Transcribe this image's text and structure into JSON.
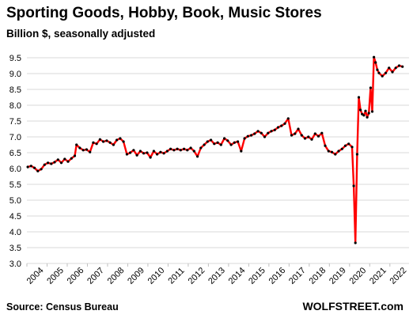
{
  "chart_data": {
    "type": "line",
    "title": "Sporting Goods, Hobby, Book, Music Stores",
    "subtitle": "Billion $, seasonally adjusted",
    "xlabel": "",
    "ylabel": "",
    "ylim": [
      3.0,
      9.5
    ],
    "y_ticks": [
      "3.0",
      "3.5",
      "4.0",
      "4.5",
      "5.0",
      "5.5",
      "6.0",
      "6.5",
      "7.0",
      "7.5",
      "8.0",
      "8.5",
      "9.0",
      "9.5"
    ],
    "x_ticks": [
      "2004",
      "2005",
      "2006",
      "2007",
      "2008",
      "2009",
      "2010",
      "2011",
      "2012",
      "2013",
      "2014",
      "2015",
      "2016",
      "2017",
      "2018",
      "2019",
      "2020",
      "2021",
      "2022"
    ],
    "grid": "horizontal",
    "line_color": "#ff0000",
    "marker_color": "#000000",
    "series": [
      {
        "points": [
          [
            "2004-01",
            6.05
          ],
          [
            "2004-03",
            6.08
          ],
          [
            "2004-05",
            6.02
          ],
          [
            "2004-07",
            5.92
          ],
          [
            "2004-09",
            5.98
          ],
          [
            "2004-11",
            6.12
          ],
          [
            "2005-01",
            6.18
          ],
          [
            "2005-03",
            6.15
          ],
          [
            "2005-05",
            6.2
          ],
          [
            "2005-07",
            6.28
          ],
          [
            "2005-09",
            6.18
          ],
          [
            "2005-11",
            6.3
          ],
          [
            "2006-01",
            6.22
          ],
          [
            "2006-03",
            6.32
          ],
          [
            "2006-05",
            6.4
          ],
          [
            "2006-06",
            6.75
          ],
          [
            "2006-08",
            6.65
          ],
          [
            "2006-10",
            6.58
          ],
          [
            "2006-12",
            6.6
          ],
          [
            "2007-02",
            6.52
          ],
          [
            "2007-04",
            6.82
          ],
          [
            "2007-06",
            6.78
          ],
          [
            "2007-08",
            6.92
          ],
          [
            "2007-10",
            6.85
          ],
          [
            "2007-12",
            6.88
          ],
          [
            "2008-02",
            6.82
          ],
          [
            "2008-04",
            6.75
          ],
          [
            "2008-06",
            6.9
          ],
          [
            "2008-08",
            6.95
          ],
          [
            "2008-10",
            6.85
          ],
          [
            "2008-12",
            6.45
          ],
          [
            "2009-02",
            6.5
          ],
          [
            "2009-04",
            6.58
          ],
          [
            "2009-06",
            6.42
          ],
          [
            "2009-08",
            6.55
          ],
          [
            "2009-10",
            6.48
          ],
          [
            "2009-12",
            6.5
          ],
          [
            "2010-02",
            6.35
          ],
          [
            "2010-04",
            6.55
          ],
          [
            "2010-06",
            6.45
          ],
          [
            "2010-08",
            6.52
          ],
          [
            "2010-10",
            6.48
          ],
          [
            "2010-12",
            6.55
          ],
          [
            "2011-02",
            6.62
          ],
          [
            "2011-04",
            6.58
          ],
          [
            "2011-06",
            6.62
          ],
          [
            "2011-08",
            6.58
          ],
          [
            "2011-10",
            6.62
          ],
          [
            "2011-12",
            6.58
          ],
          [
            "2012-02",
            6.65
          ],
          [
            "2012-04",
            6.55
          ],
          [
            "2012-06",
            6.38
          ],
          [
            "2012-08",
            6.65
          ],
          [
            "2012-10",
            6.75
          ],
          [
            "2012-12",
            6.85
          ],
          [
            "2013-02",
            6.9
          ],
          [
            "2013-04",
            6.78
          ],
          [
            "2013-06",
            6.82
          ],
          [
            "2013-08",
            6.75
          ],
          [
            "2013-10",
            6.95
          ],
          [
            "2013-12",
            6.88
          ],
          [
            "2014-02",
            6.75
          ],
          [
            "2014-04",
            6.82
          ],
          [
            "2014-06",
            6.85
          ],
          [
            "2014-08",
            6.55
          ],
          [
            "2014-10",
            6.95
          ],
          [
            "2014-12",
            7.02
          ],
          [
            "2015-02",
            7.05
          ],
          [
            "2015-04",
            7.1
          ],
          [
            "2015-06",
            7.18
          ],
          [
            "2015-08",
            7.12
          ],
          [
            "2015-10",
            7.0
          ],
          [
            "2015-12",
            7.12
          ],
          [
            "2016-02",
            7.18
          ],
          [
            "2016-04",
            7.22
          ],
          [
            "2016-06",
            7.3
          ],
          [
            "2016-08",
            7.35
          ],
          [
            "2016-10",
            7.42
          ],
          [
            "2016-12",
            7.58
          ],
          [
            "2017-02",
            7.05
          ],
          [
            "2017-04",
            7.1
          ],
          [
            "2017-06",
            7.25
          ],
          [
            "2017-08",
            7.05
          ],
          [
            "2017-10",
            6.95
          ],
          [
            "2017-12",
            7.0
          ],
          [
            "2018-02",
            6.92
          ],
          [
            "2018-04",
            7.1
          ],
          [
            "2018-06",
            7.02
          ],
          [
            "2018-08",
            7.12
          ],
          [
            "2018-10",
            6.72
          ],
          [
            "2018-12",
            6.55
          ],
          [
            "2019-02",
            6.52
          ],
          [
            "2019-04",
            6.45
          ],
          [
            "2019-06",
            6.55
          ],
          [
            "2019-08",
            6.62
          ],
          [
            "2019-10",
            6.72
          ],
          [
            "2019-12",
            6.78
          ],
          [
            "2020-02",
            6.68
          ],
          [
            "2020-03",
            5.45
          ],
          [
            "2020-04",
            3.65
          ],
          [
            "2020-05",
            6.45
          ],
          [
            "2020-06",
            8.25
          ],
          [
            "2020-07",
            7.85
          ],
          [
            "2020-08",
            7.72
          ],
          [
            "2020-09",
            7.68
          ],
          [
            "2020-10",
            7.82
          ],
          [
            "2020-11",
            7.62
          ],
          [
            "2020-12",
            7.75
          ],
          [
            "2021-01",
            8.55
          ],
          [
            "2021-02",
            7.8
          ],
          [
            "2021-03",
            9.52
          ],
          [
            "2021-04",
            9.35
          ],
          [
            "2021-05",
            9.12
          ],
          [
            "2021-06",
            9.02
          ],
          [
            "2021-08",
            8.92
          ],
          [
            "2021-10",
            9.02
          ],
          [
            "2021-12",
            9.18
          ],
          [
            "2022-02",
            9.05
          ],
          [
            "2022-04",
            9.18
          ],
          [
            "2022-06",
            9.25
          ],
          [
            "2022-08",
            9.22
          ]
        ]
      }
    ]
  },
  "footer": {
    "source": "Source: Census Bureau",
    "brand": "WOLFSTREET.com"
  }
}
